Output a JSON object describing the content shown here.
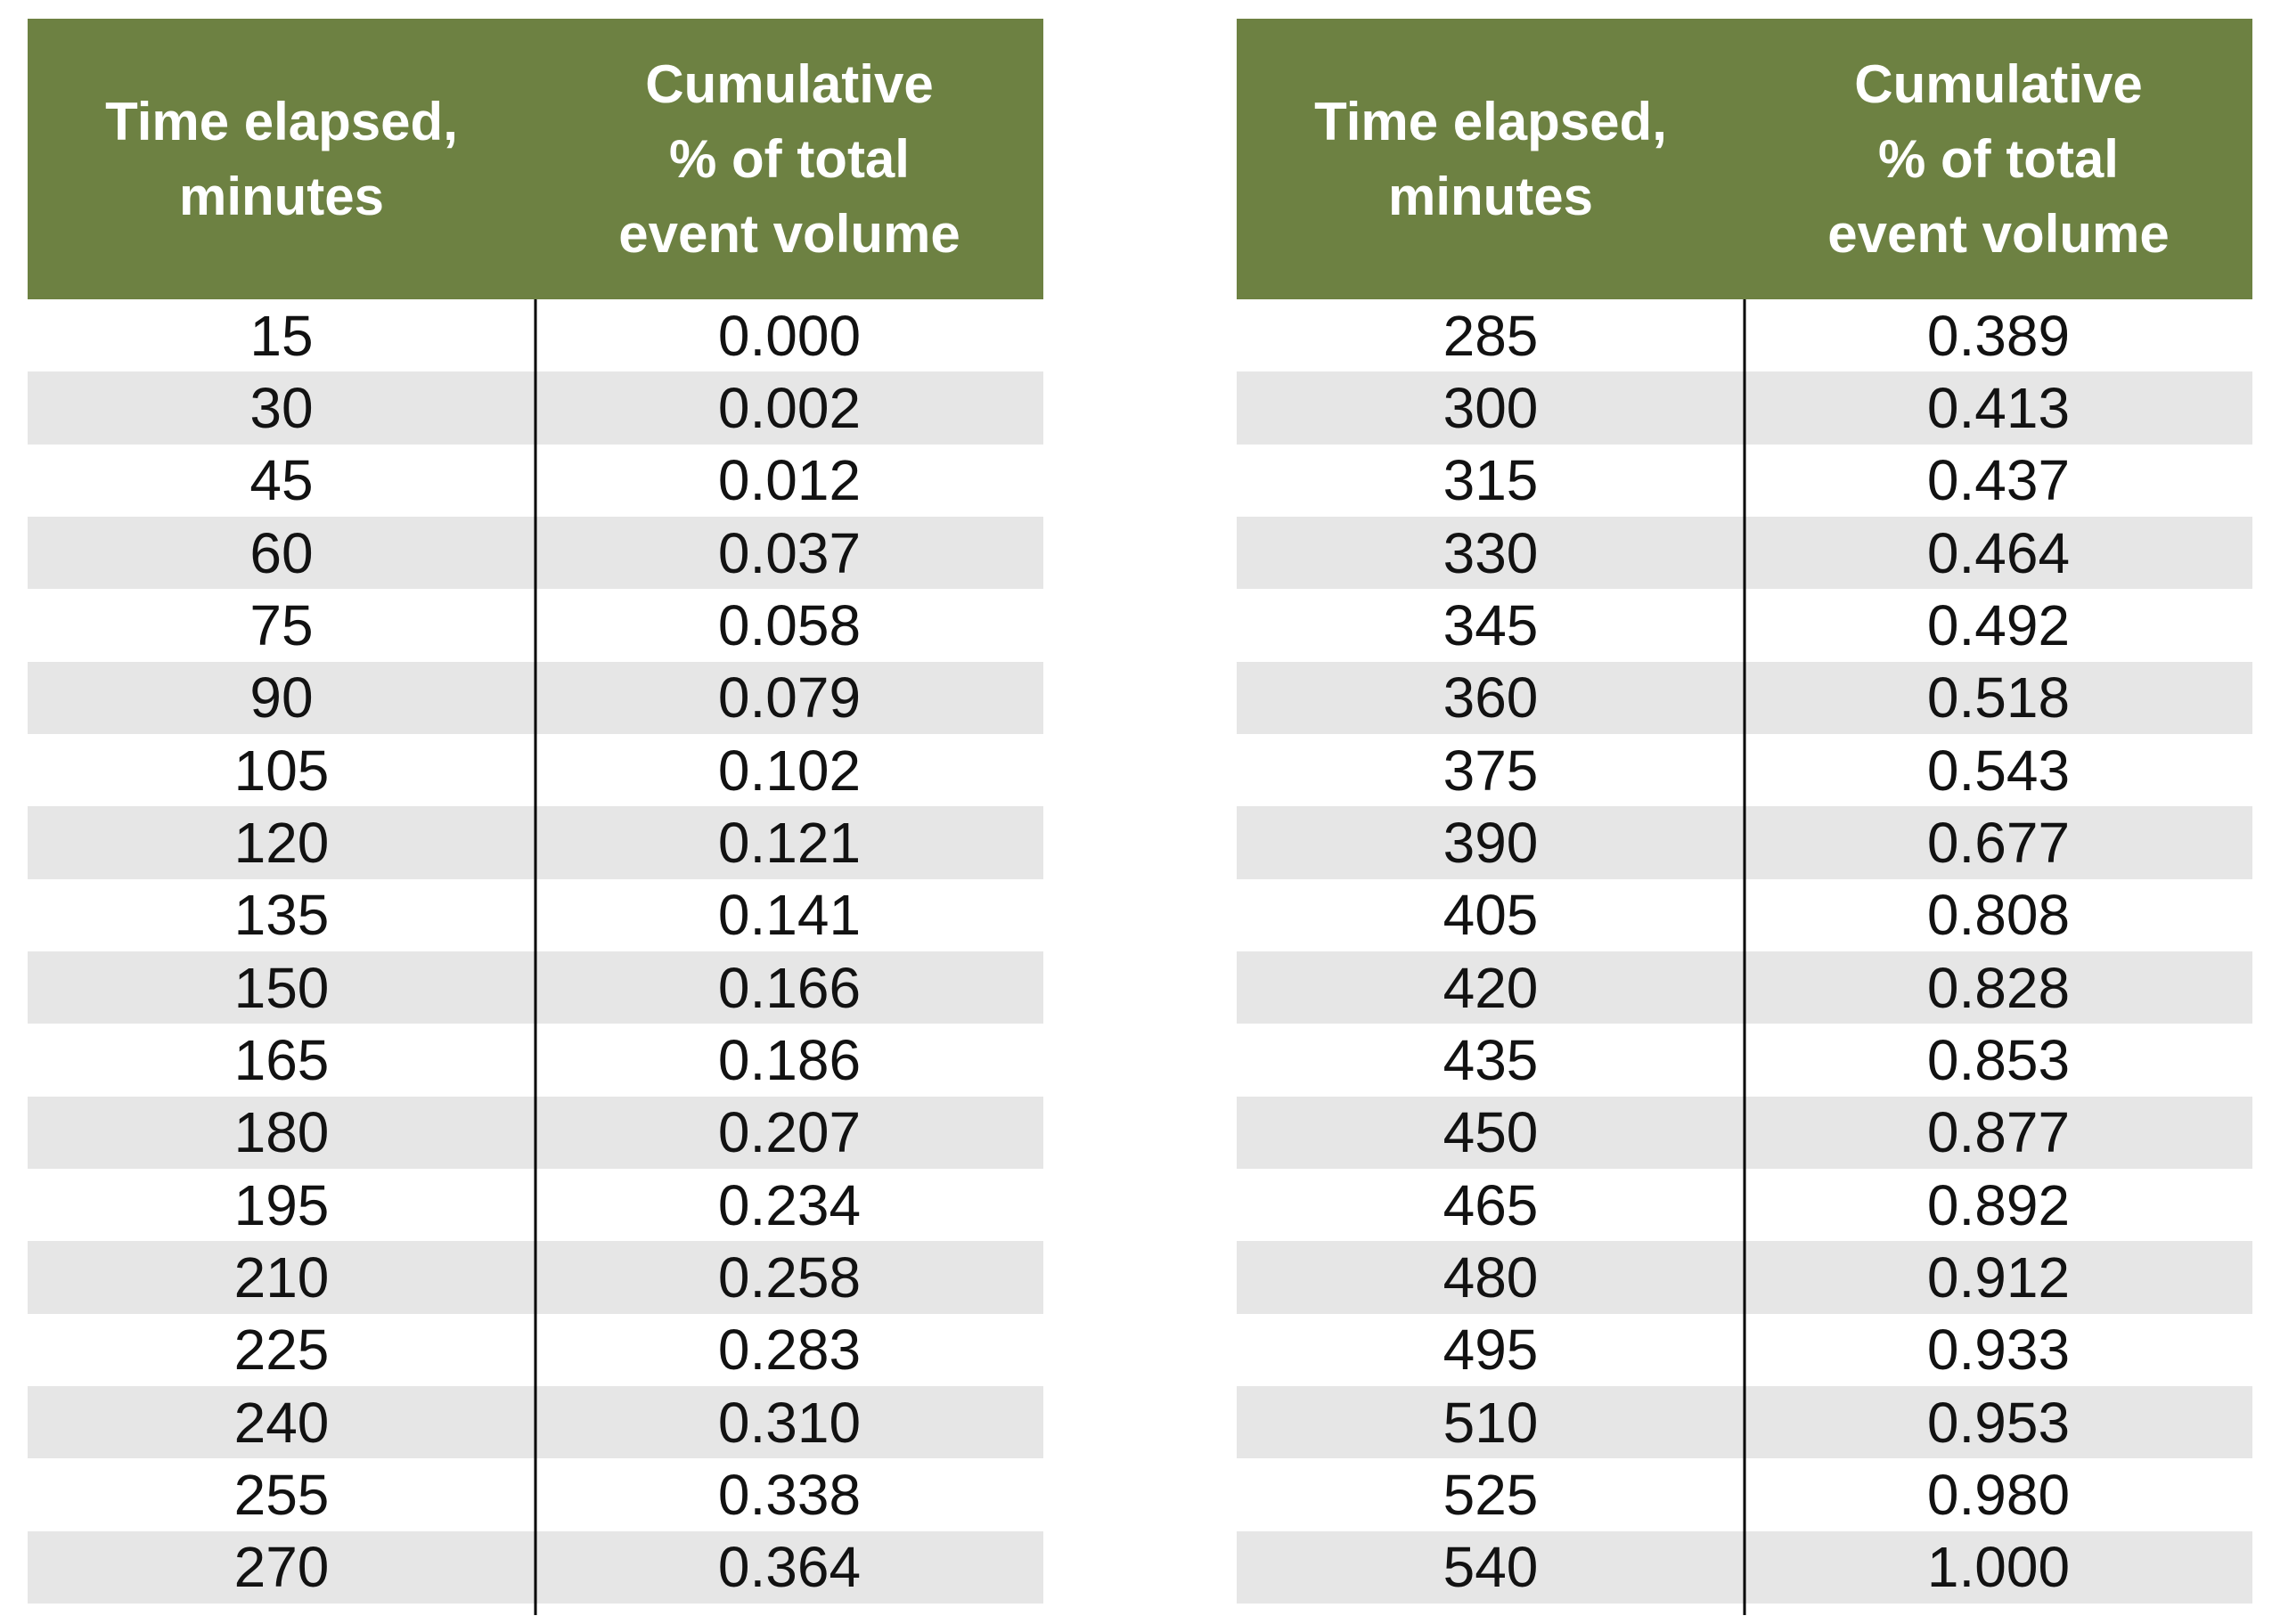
{
  "colors": {
    "header_bg": "#6D8142",
    "header_text": "#FFFFFF",
    "row_bg": "#FFFFFF",
    "row_alt_bg": "#E6E6E6",
    "divider": "#000000",
    "body_text": "#121212"
  },
  "tables": [
    {
      "header": {
        "time_lines": [
          "Time elapsed,",
          "minutes"
        ],
        "value_lines": [
          "Cumulative",
          "% of total",
          "event volume"
        ]
      },
      "rows": [
        [
          "15",
          "0.000"
        ],
        [
          "30",
          "0.002"
        ],
        [
          "45",
          "0.012"
        ],
        [
          "60",
          "0.037"
        ],
        [
          "75",
          "0.058"
        ],
        [
          "90",
          "0.079"
        ],
        [
          "105",
          "0.102"
        ],
        [
          "120",
          "0.121"
        ],
        [
          "135",
          "0.141"
        ],
        [
          "150",
          "0.166"
        ],
        [
          "165",
          "0.186"
        ],
        [
          "180",
          "0.207"
        ],
        [
          "195",
          "0.234"
        ],
        [
          "210",
          "0.258"
        ],
        [
          "225",
          "0.283"
        ],
        [
          "240",
          "0.310"
        ],
        [
          "255",
          "0.338"
        ],
        [
          "270",
          "0.364"
        ]
      ]
    },
    {
      "header": {
        "time_lines": [
          "Time elapsed,",
          "minutes"
        ],
        "value_lines": [
          "Cumulative",
          "% of total",
          "event volume"
        ]
      },
      "rows": [
        [
          "285",
          "0.389"
        ],
        [
          "300",
          "0.413"
        ],
        [
          "315",
          "0.437"
        ],
        [
          "330",
          "0.464"
        ],
        [
          "345",
          "0.492"
        ],
        [
          "360",
          "0.518"
        ],
        [
          "375",
          "0.543"
        ],
        [
          "390",
          "0.677"
        ],
        [
          "405",
          "0.808"
        ],
        [
          "420",
          "0.828"
        ],
        [
          "435",
          "0.853"
        ],
        [
          "450",
          "0.877"
        ],
        [
          "465",
          "0.892"
        ],
        [
          "480",
          "0.912"
        ],
        [
          "495",
          "0.933"
        ],
        [
          "510",
          "0.953"
        ],
        [
          "525",
          "0.980"
        ],
        [
          "540",
          "1.000"
        ]
      ]
    }
  ]
}
